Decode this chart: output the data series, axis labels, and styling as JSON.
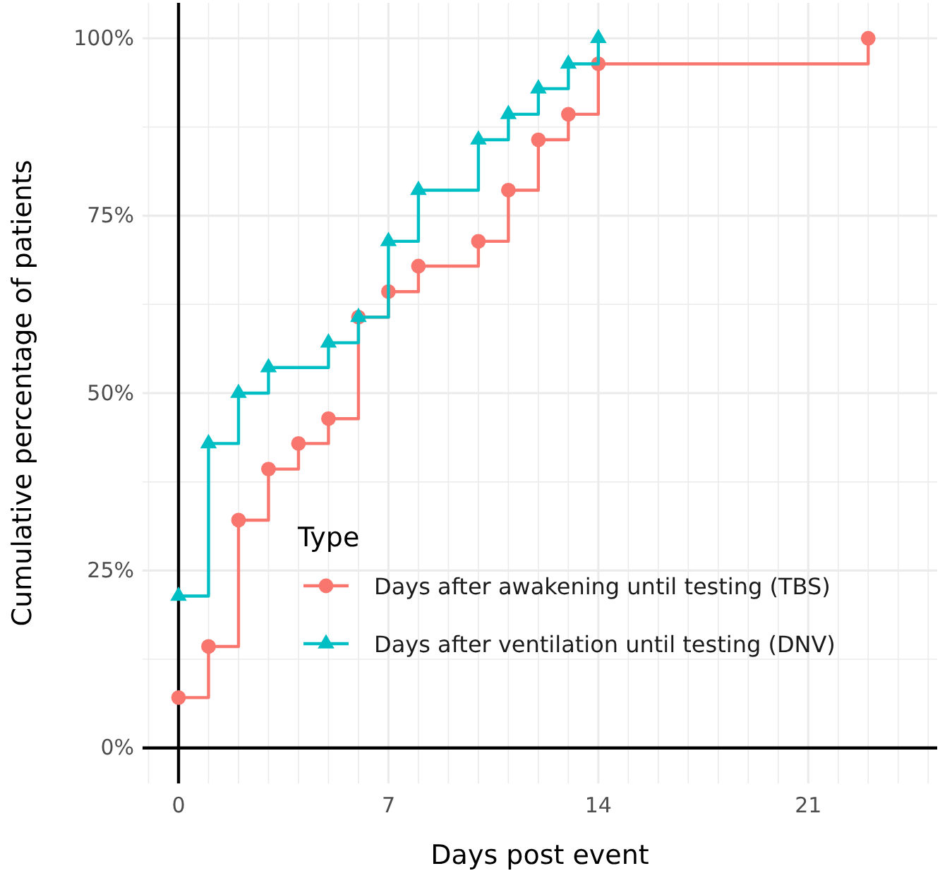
{
  "chart_data": {
    "type": "step",
    "xlabel": "Days post event",
    "ylabel": "Cumulative percentage of patients",
    "legend_title": "Type",
    "xlim": [
      -1.2,
      25.3
    ],
    "xticks": [
      0,
      7,
      14,
      21
    ],
    "ylim": [
      -5,
      105
    ],
    "yticks": [
      {
        "value": 0,
        "label": "0%"
      },
      {
        "value": 25,
        "label": "25%"
      },
      {
        "value": 50,
        "label": "50%"
      },
      {
        "value": 75,
        "label": "75%"
      },
      {
        "value": 100,
        "label": "100%"
      }
    ],
    "grid": true,
    "legend": "bottom right",
    "line_style": "solid",
    "series": [
      {
        "name": "Days after awakening until testing (TBS)",
        "color": "#f8766d",
        "marker": "circle",
        "x": [
          0,
          1,
          2,
          3,
          4,
          5,
          6,
          7,
          8,
          10,
          11,
          12,
          13,
          14,
          23
        ],
        "values": [
          7.1,
          14.3,
          32.1,
          39.3,
          42.9,
          46.4,
          60.7,
          64.3,
          67.9,
          71.4,
          78.6,
          85.7,
          89.3,
          96.4,
          100
        ]
      },
      {
        "name": "Days after ventilation until testing (DNV)",
        "color": "#00bfc4",
        "marker": "triangle",
        "x": [
          0,
          1,
          2,
          3,
          5,
          6,
          7,
          8,
          10,
          11,
          12,
          13,
          14
        ],
        "values": [
          21.4,
          42.9,
          50,
          53.6,
          57.1,
          60.7,
          71.4,
          78.6,
          85.7,
          89.3,
          92.9,
          96.4,
          100
        ]
      }
    ]
  }
}
